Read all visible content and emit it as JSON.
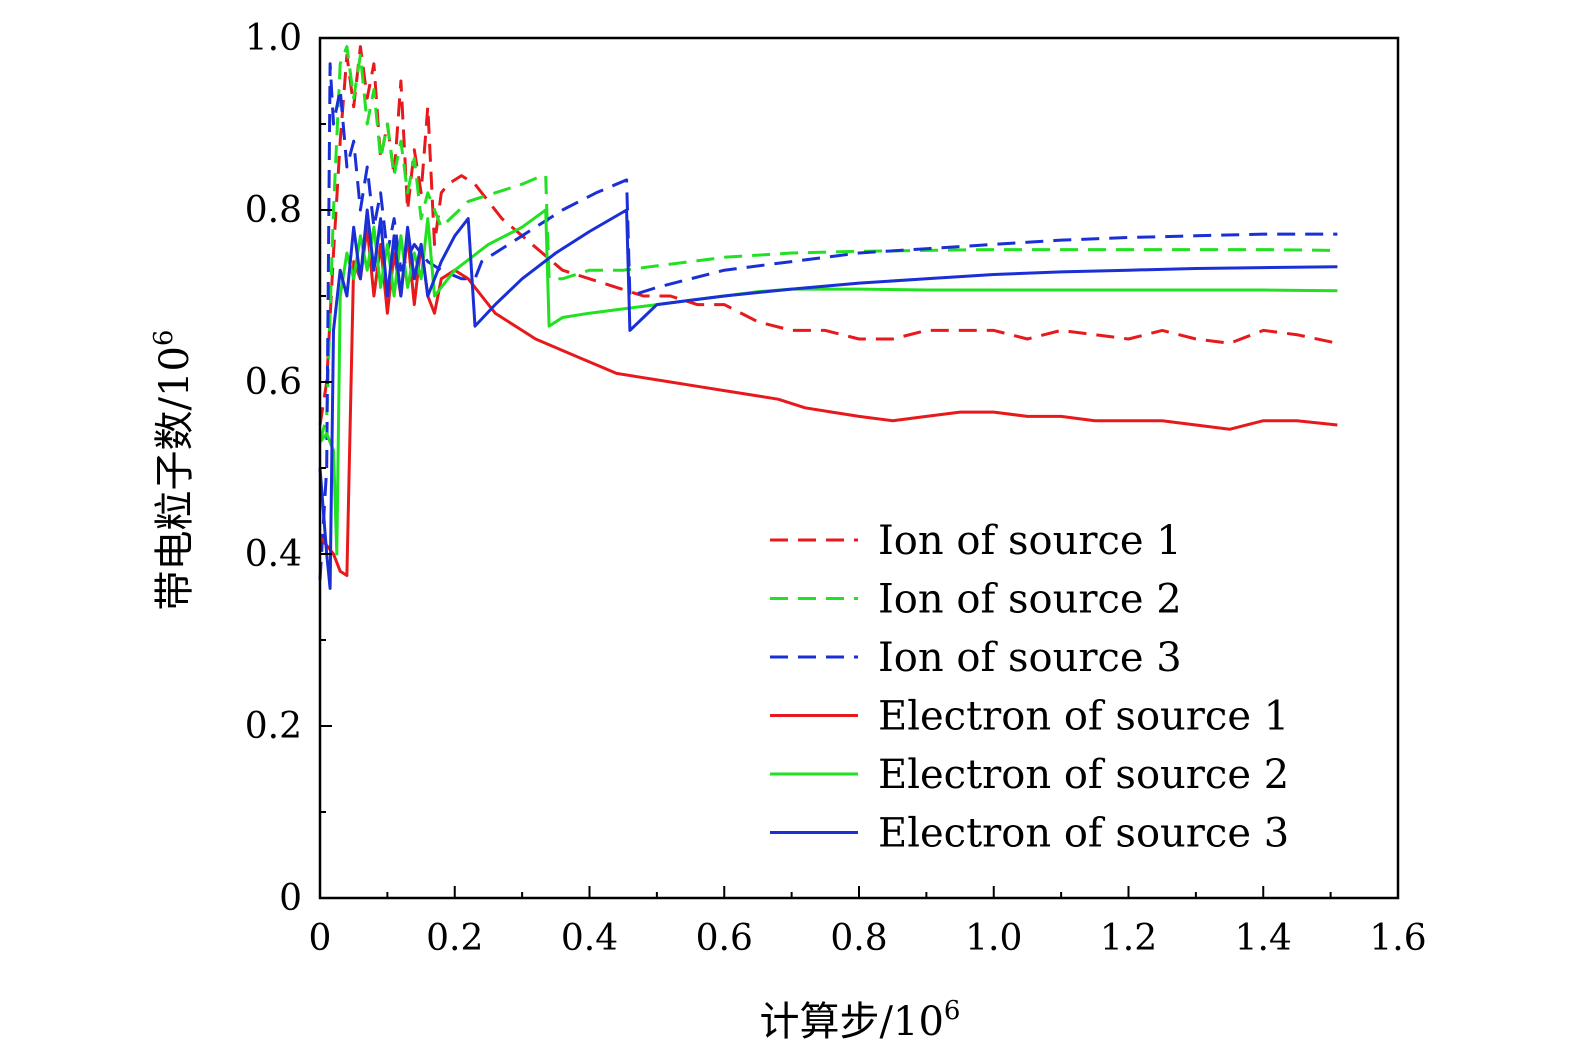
{
  "chart_data": {
    "type": "line",
    "title": "",
    "xlabel": "计算步/10",
    "xlabel_sup": "6",
    "ylabel": "带电粒子数/10",
    "ylabel_sup": "6",
    "xlim": [
      0,
      1.6
    ],
    "ylim": [
      0,
      1.0
    ],
    "x_ticks": [
      0,
      0.2,
      0.4,
      0.6,
      0.8,
      1.0,
      1.2,
      1.4,
      1.6
    ],
    "x_tick_labels": [
      "0",
      "0.2",
      "0.4",
      "0.6",
      "0.8",
      "1.0",
      "1.2",
      "1.4",
      "1.6"
    ],
    "y_ticks": [
      0,
      0.2,
      0.4,
      0.6,
      0.8,
      1.0
    ],
    "y_tick_labels": [
      "0",
      "0.2",
      "0.4",
      "0.6",
      "0.8",
      "1.0"
    ],
    "grid": false,
    "legend_position": "bottom-right",
    "series": [
      {
        "name": "Ion of source 1",
        "color": "#e8191c",
        "dash": "dashed",
        "points": [
          [
            0,
            0.55
          ],
          [
            0.01,
            0.6
          ],
          [
            0.02,
            0.75
          ],
          [
            0.03,
            0.88
          ],
          [
            0.04,
            0.98
          ],
          [
            0.05,
            0.92
          ],
          [
            0.06,
            0.99
          ],
          [
            0.07,
            0.93
          ],
          [
            0.08,
            0.97
          ],
          [
            0.09,
            0.86
          ],
          [
            0.1,
            0.9
          ],
          [
            0.11,
            0.84
          ],
          [
            0.12,
            0.95
          ],
          [
            0.13,
            0.8
          ],
          [
            0.14,
            0.87
          ],
          [
            0.15,
            0.82
          ],
          [
            0.16,
            0.92
          ],
          [
            0.17,
            0.76
          ],
          [
            0.18,
            0.82
          ],
          [
            0.19,
            0.83
          ],
          [
            0.21,
            0.84
          ],
          [
            0.23,
            0.83
          ],
          [
            0.25,
            0.81
          ],
          [
            0.27,
            0.79
          ],
          [
            0.3,
            0.77
          ],
          [
            0.33,
            0.75
          ],
          [
            0.36,
            0.73
          ],
          [
            0.4,
            0.72
          ],
          [
            0.44,
            0.71
          ],
          [
            0.48,
            0.7
          ],
          [
            0.52,
            0.7
          ],
          [
            0.56,
            0.69
          ],
          [
            0.6,
            0.69
          ],
          [
            0.65,
            0.67
          ],
          [
            0.7,
            0.66
          ],
          [
            0.75,
            0.66
          ],
          [
            0.8,
            0.65
          ],
          [
            0.85,
            0.65
          ],
          [
            0.9,
            0.66
          ],
          [
            0.95,
            0.66
          ],
          [
            1.0,
            0.66
          ],
          [
            1.05,
            0.65
          ],
          [
            1.1,
            0.66
          ],
          [
            1.15,
            0.655
          ],
          [
            1.2,
            0.65
          ],
          [
            1.25,
            0.66
          ],
          [
            1.3,
            0.65
          ],
          [
            1.35,
            0.645
          ],
          [
            1.4,
            0.66
          ],
          [
            1.45,
            0.655
          ],
          [
            1.51,
            0.645
          ]
        ]
      },
      {
        "name": "Ion of source 2",
        "color": "#22e022",
        "dash": "dashed",
        "points": [
          [
            0,
            0.53
          ],
          [
            0.01,
            0.56
          ],
          [
            0.02,
            0.8
          ],
          [
            0.03,
            0.97
          ],
          [
            0.04,
            0.99
          ],
          [
            0.05,
            0.93
          ],
          [
            0.06,
            0.98
          ],
          [
            0.07,
            0.9
          ],
          [
            0.08,
            0.94
          ],
          [
            0.09,
            0.86
          ],
          [
            0.1,
            0.9
          ],
          [
            0.11,
            0.84
          ],
          [
            0.12,
            0.88
          ],
          [
            0.13,
            0.82
          ],
          [
            0.14,
            0.86
          ],
          [
            0.15,
            0.79
          ],
          [
            0.16,
            0.82
          ],
          [
            0.18,
            0.78
          ],
          [
            0.22,
            0.81
          ],
          [
            0.26,
            0.82
          ],
          [
            0.3,
            0.83
          ],
          [
            0.33,
            0.84
          ],
          [
            0.335,
            0.84
          ],
          [
            0.34,
            0.72
          ],
          [
            0.36,
            0.72
          ],
          [
            0.4,
            0.73
          ],
          [
            0.45,
            0.73
          ],
          [
            0.5,
            0.735
          ],
          [
            0.55,
            0.74
          ],
          [
            0.6,
            0.745
          ],
          [
            0.7,
            0.75
          ],
          [
            0.8,
            0.752
          ],
          [
            0.9,
            0.753
          ],
          [
            1.0,
            0.754
          ],
          [
            1.1,
            0.754
          ],
          [
            1.2,
            0.754
          ],
          [
            1.3,
            0.754
          ],
          [
            1.4,
            0.754
          ],
          [
            1.51,
            0.753
          ]
        ]
      },
      {
        "name": "Ion of source 3",
        "color": "#1a2fd6",
        "dash": "dashed",
        "points": [
          [
            0,
            0.37
          ],
          [
            0.01,
            0.5
          ],
          [
            0.015,
            0.97
          ],
          [
            0.02,
            0.9
          ],
          [
            0.03,
            0.94
          ],
          [
            0.04,
            0.85
          ],
          [
            0.05,
            0.88
          ],
          [
            0.06,
            0.8
          ],
          [
            0.07,
            0.85
          ],
          [
            0.08,
            0.78
          ],
          [
            0.09,
            0.82
          ],
          [
            0.1,
            0.75
          ],
          [
            0.11,
            0.79
          ],
          [
            0.12,
            0.73
          ],
          [
            0.14,
            0.76
          ],
          [
            0.16,
            0.74
          ],
          [
            0.18,
            0.73
          ],
          [
            0.21,
            0.72
          ],
          [
            0.23,
            0.72
          ],
          [
            0.24,
            0.74
          ],
          [
            0.3,
            0.77
          ],
          [
            0.36,
            0.8
          ],
          [
            0.41,
            0.82
          ],
          [
            0.455,
            0.835
          ],
          [
            0.46,
            0.7
          ],
          [
            0.48,
            0.705
          ],
          [
            0.5,
            0.71
          ],
          [
            0.55,
            0.72
          ],
          [
            0.6,
            0.73
          ],
          [
            0.7,
            0.74
          ],
          [
            0.8,
            0.75
          ],
          [
            0.9,
            0.755
          ],
          [
            1.0,
            0.76
          ],
          [
            1.1,
            0.765
          ],
          [
            1.2,
            0.768
          ],
          [
            1.3,
            0.77
          ],
          [
            1.4,
            0.772
          ],
          [
            1.51,
            0.772
          ]
        ]
      },
      {
        "name": "Electron of source 1",
        "color": "#e8191c",
        "dash": "solid",
        "points": [
          [
            0,
            0.42
          ],
          [
            0.01,
            0.41
          ],
          [
            0.02,
            0.4
          ],
          [
            0.03,
            0.38
          ],
          [
            0.04,
            0.375
          ],
          [
            0.05,
            0.74
          ],
          [
            0.06,
            0.72
          ],
          [
            0.07,
            0.78
          ],
          [
            0.08,
            0.7
          ],
          [
            0.09,
            0.76
          ],
          [
            0.1,
            0.68
          ],
          [
            0.11,
            0.75
          ],
          [
            0.12,
            0.7
          ],
          [
            0.13,
            0.77
          ],
          [
            0.14,
            0.69
          ],
          [
            0.15,
            0.76
          ],
          [
            0.16,
            0.7
          ],
          [
            0.17,
            0.68
          ],
          [
            0.18,
            0.72
          ],
          [
            0.2,
            0.73
          ],
          [
            0.22,
            0.72
          ],
          [
            0.24,
            0.7
          ],
          [
            0.26,
            0.68
          ],
          [
            0.28,
            0.67
          ],
          [
            0.3,
            0.66
          ],
          [
            0.32,
            0.65
          ],
          [
            0.35,
            0.64
          ],
          [
            0.38,
            0.63
          ],
          [
            0.41,
            0.62
          ],
          [
            0.44,
            0.61
          ],
          [
            0.48,
            0.605
          ],
          [
            0.52,
            0.6
          ],
          [
            0.56,
            0.595
          ],
          [
            0.6,
            0.59
          ],
          [
            0.64,
            0.585
          ],
          [
            0.68,
            0.58
          ],
          [
            0.72,
            0.57
          ],
          [
            0.76,
            0.565
          ],
          [
            0.8,
            0.56
          ],
          [
            0.85,
            0.555
          ],
          [
            0.9,
            0.56
          ],
          [
            0.95,
            0.565
          ],
          [
            1.0,
            0.565
          ],
          [
            1.05,
            0.56
          ],
          [
            1.1,
            0.56
          ],
          [
            1.15,
            0.555
          ],
          [
            1.2,
            0.555
          ],
          [
            1.25,
            0.555
          ],
          [
            1.3,
            0.55
          ],
          [
            1.35,
            0.545
          ],
          [
            1.4,
            0.555
          ],
          [
            1.45,
            0.555
          ],
          [
            1.51,
            0.55
          ]
        ]
      },
      {
        "name": "Electron of source 2",
        "color": "#22e022",
        "dash": "solid",
        "points": [
          [
            0,
            0.53
          ],
          [
            0.01,
            0.54
          ],
          [
            0.02,
            0.52
          ],
          [
            0.025,
            0.4
          ],
          [
            0.03,
            0.7
          ],
          [
            0.04,
            0.75
          ],
          [
            0.05,
            0.72
          ],
          [
            0.06,
            0.77
          ],
          [
            0.07,
            0.73
          ],
          [
            0.08,
            0.78
          ],
          [
            0.09,
            0.71
          ],
          [
            0.1,
            0.76
          ],
          [
            0.11,
            0.7
          ],
          [
            0.12,
            0.77
          ],
          [
            0.13,
            0.71
          ],
          [
            0.14,
            0.75
          ],
          [
            0.15,
            0.72
          ],
          [
            0.16,
            0.79
          ],
          [
            0.17,
            0.7
          ],
          [
            0.2,
            0.73
          ],
          [
            0.25,
            0.76
          ],
          [
            0.3,
            0.78
          ],
          [
            0.335,
            0.8
          ],
          [
            0.34,
            0.665
          ],
          [
            0.36,
            0.675
          ],
          [
            0.4,
            0.68
          ],
          [
            0.45,
            0.685
          ],
          [
            0.5,
            0.69
          ],
          [
            0.55,
            0.695
          ],
          [
            0.6,
            0.7
          ],
          [
            0.65,
            0.705
          ],
          [
            0.7,
            0.708
          ],
          [
            0.8,
            0.708
          ],
          [
            0.9,
            0.707
          ],
          [
            1.0,
            0.707
          ],
          [
            1.1,
            0.707
          ],
          [
            1.2,
            0.707
          ],
          [
            1.3,
            0.707
          ],
          [
            1.4,
            0.707
          ],
          [
            1.51,
            0.706
          ]
        ]
      },
      {
        "name": "Electron of source 3",
        "color": "#1a2fd6",
        "dash": "solid",
        "points": [
          [
            0,
            0.5
          ],
          [
            0.01,
            0.4
          ],
          [
            0.015,
            0.36
          ],
          [
            0.02,
            0.66
          ],
          [
            0.03,
            0.73
          ],
          [
            0.04,
            0.7
          ],
          [
            0.05,
            0.78
          ],
          [
            0.06,
            0.72
          ],
          [
            0.07,
            0.8
          ],
          [
            0.08,
            0.73
          ],
          [
            0.09,
            0.79
          ],
          [
            0.1,
            0.7
          ],
          [
            0.11,
            0.77
          ],
          [
            0.12,
            0.7
          ],
          [
            0.13,
            0.78
          ],
          [
            0.14,
            0.72
          ],
          [
            0.15,
            0.76
          ],
          [
            0.16,
            0.7
          ],
          [
            0.18,
            0.74
          ],
          [
            0.2,
            0.77
          ],
          [
            0.22,
            0.79
          ],
          [
            0.23,
            0.665
          ],
          [
            0.26,
            0.69
          ],
          [
            0.3,
            0.72
          ],
          [
            0.35,
            0.75
          ],
          [
            0.4,
            0.775
          ],
          [
            0.455,
            0.8
          ],
          [
            0.46,
            0.66
          ],
          [
            0.48,
            0.675
          ],
          [
            0.5,
            0.69
          ],
          [
            0.55,
            0.695
          ],
          [
            0.6,
            0.7
          ],
          [
            0.7,
            0.708
          ],
          [
            0.8,
            0.715
          ],
          [
            0.9,
            0.72
          ],
          [
            1.0,
            0.725
          ],
          [
            1.1,
            0.728
          ],
          [
            1.2,
            0.73
          ],
          [
            1.3,
            0.732
          ],
          [
            1.4,
            0.733
          ],
          [
            1.51,
            0.734
          ]
        ]
      }
    ]
  }
}
